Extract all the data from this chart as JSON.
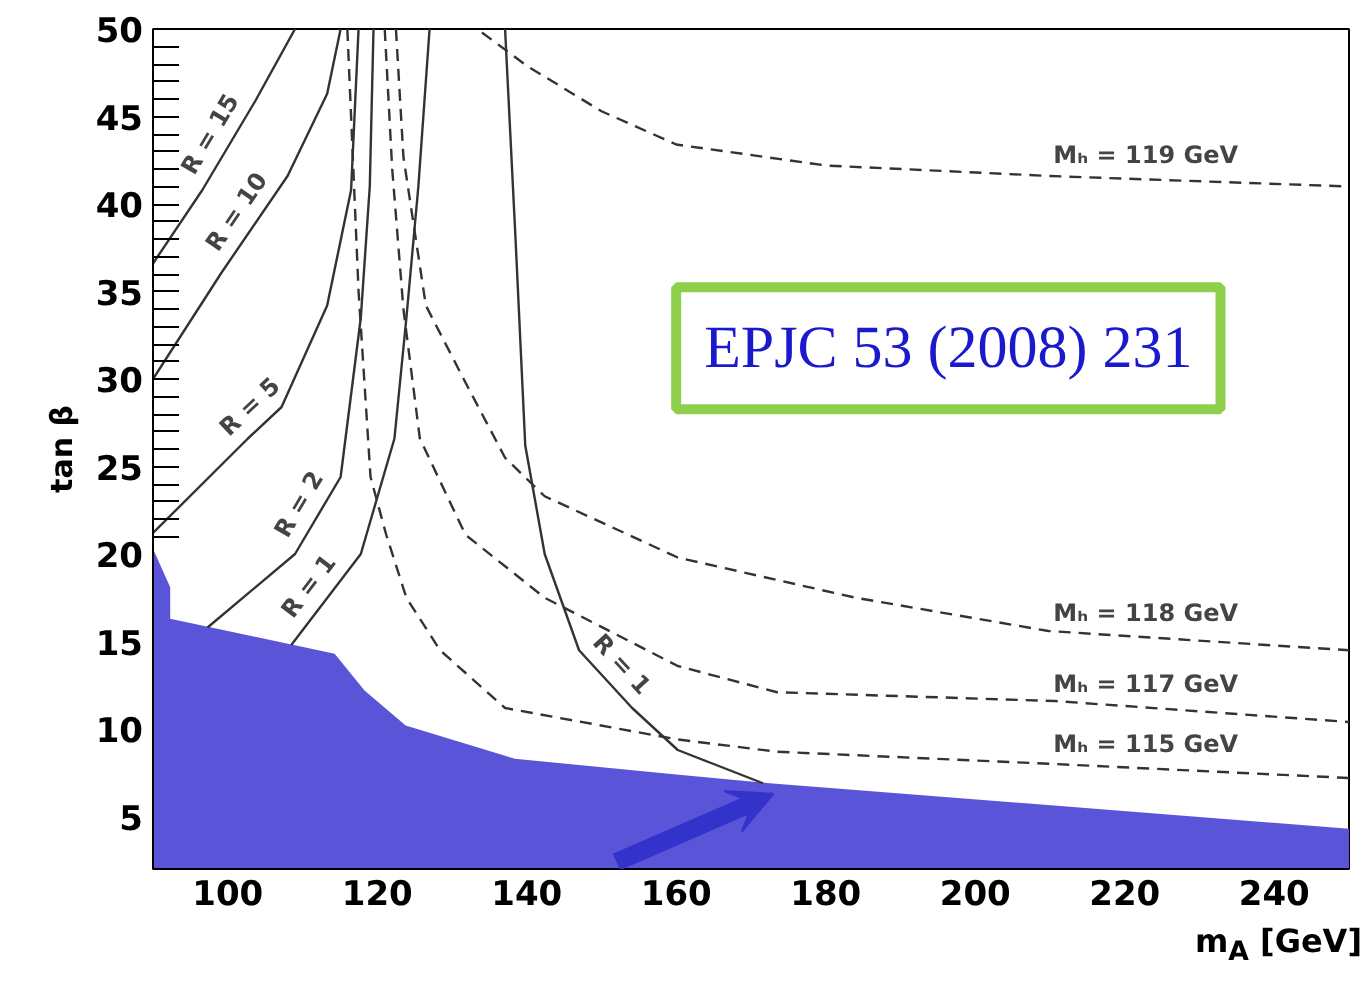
{
  "chart_data": {
    "type": "line",
    "xlabel": "m$_{A}$ [GeV]",
    "ylabel": "tan β",
    "xlim": [
      90,
      250
    ],
    "ylim": [
      2,
      50
    ],
    "xticks": [
      100,
      120,
      140,
      160,
      180,
      200,
      220,
      240
    ],
    "yticks": [
      5,
      10,
      15,
      20,
      25,
      30,
      35,
      40,
      45,
      50
    ],
    "grid": false,
    "legend": false,
    "series": [
      {
        "type": "area",
        "color": "#5a55d8",
        "x": [
          90,
          92.3,
          92.3,
          114.3,
          118.3,
          123.8,
          138.4,
          160,
          172.5,
          250
        ],
        "values": [
          20.3,
          18.1,
          16.3,
          14.3,
          12.2,
          10.2,
          8.3,
          7.4,
          6.9,
          4.3
        ]
      },
      {
        "name": "R = 15",
        "color": "#333333",
        "line_style": "solid",
        "x": [
          90,
          96.6,
          103.7,
          109
        ],
        "values": [
          36.6,
          40.8,
          45.9,
          50
        ]
      },
      {
        "name": "R = 10",
        "color": "#333333",
        "line_style": "solid",
        "x": [
          90,
          99.2,
          108,
          113.3,
          115.1
        ],
        "values": [
          30,
          36.1,
          41.6,
          46.3,
          50
        ]
      },
      {
        "name": "R = 5",
        "color": "#333333",
        "line_style": "solid",
        "x": [
          90,
          102.7,
          107.2,
          113.3,
          116.5,
          117.5
        ],
        "values": [
          21.2,
          26.6,
          28.4,
          34.2,
          40.8,
          50
        ]
      },
      {
        "name": "R = 2",
        "color": "#333333",
        "line_style": "solid",
        "x": [
          97.3,
          109,
          115.1,
          117.8,
          119,
          119.5
        ],
        "values": [
          15.8,
          20,
          24.4,
          33.5,
          41,
          50
        ]
      },
      {
        "name": "R = 1",
        "color": "#333333",
        "line_style": "solid",
        "x": [
          108.5,
          117.8,
          122.3,
          123.9,
          125.5,
          127
        ],
        "values": [
          14.8,
          20,
          26.6,
          33.5,
          41,
          50
        ]
      },
      {
        "name": "R = 1",
        "color": "#333333",
        "line_style": "solid",
        "x": [
          137.1,
          138.5,
          139.8,
          142.4,
          147,
          154.1,
          160.2,
          165,
          171.6
        ],
        "values": [
          50,
          38,
          26.2,
          20,
          14.5,
          11.2,
          8.8,
          8,
          6.9
        ]
      },
      {
        "name": "Mₕ = 119 GeV",
        "color": "#333333",
        "line_style": "dashed",
        "x": [
          134,
          140,
          150,
          160,
          180,
          210,
          250
        ],
        "values": [
          49.8,
          47.9,
          45.3,
          43.4,
          42.2,
          41.6,
          41.0
        ]
      },
      {
        "name": "Mₕ = 118 GeV",
        "color": "#333333",
        "line_style": "dashed",
        "x": [
          122.5,
          123.5,
          126.5,
          131.8,
          137.1,
          142.4,
          160.2,
          184,
          209.8,
          250
        ],
        "values": [
          50,
          42.7,
          34.2,
          29.8,
          25.5,
          23.3,
          19.8,
          17.5,
          15.6,
          14.5
        ]
      },
      {
        "name": "Mₕ = 117 GeV",
        "color": "#333333",
        "line_style": "dashed",
        "x": [
          121,
          122,
          123.5,
          125.7,
          131.8,
          142.4,
          160.2,
          173.5,
          210.6,
          250
        ],
        "values": [
          50,
          42,
          34,
          26.6,
          21.1,
          17.5,
          13.6,
          12.1,
          11.6,
          10.4
        ]
      },
      {
        "name": "Mₕ = 115 GeV",
        "color": "#333333",
        "line_style": "dashed",
        "x": [
          116,
          117.5,
          119.1,
          121.2,
          123.9,
          128.4,
          137.1,
          160.2,
          173.5,
          210.6,
          250
        ],
        "values": [
          50,
          35,
          24.4,
          21.1,
          17.5,
          14.5,
          11.2,
          9.4,
          8.7,
          8.0,
          7.2
        ]
      }
    ],
    "annotations": [
      "EPJC 53 (2008) 231"
    ]
  }
}
